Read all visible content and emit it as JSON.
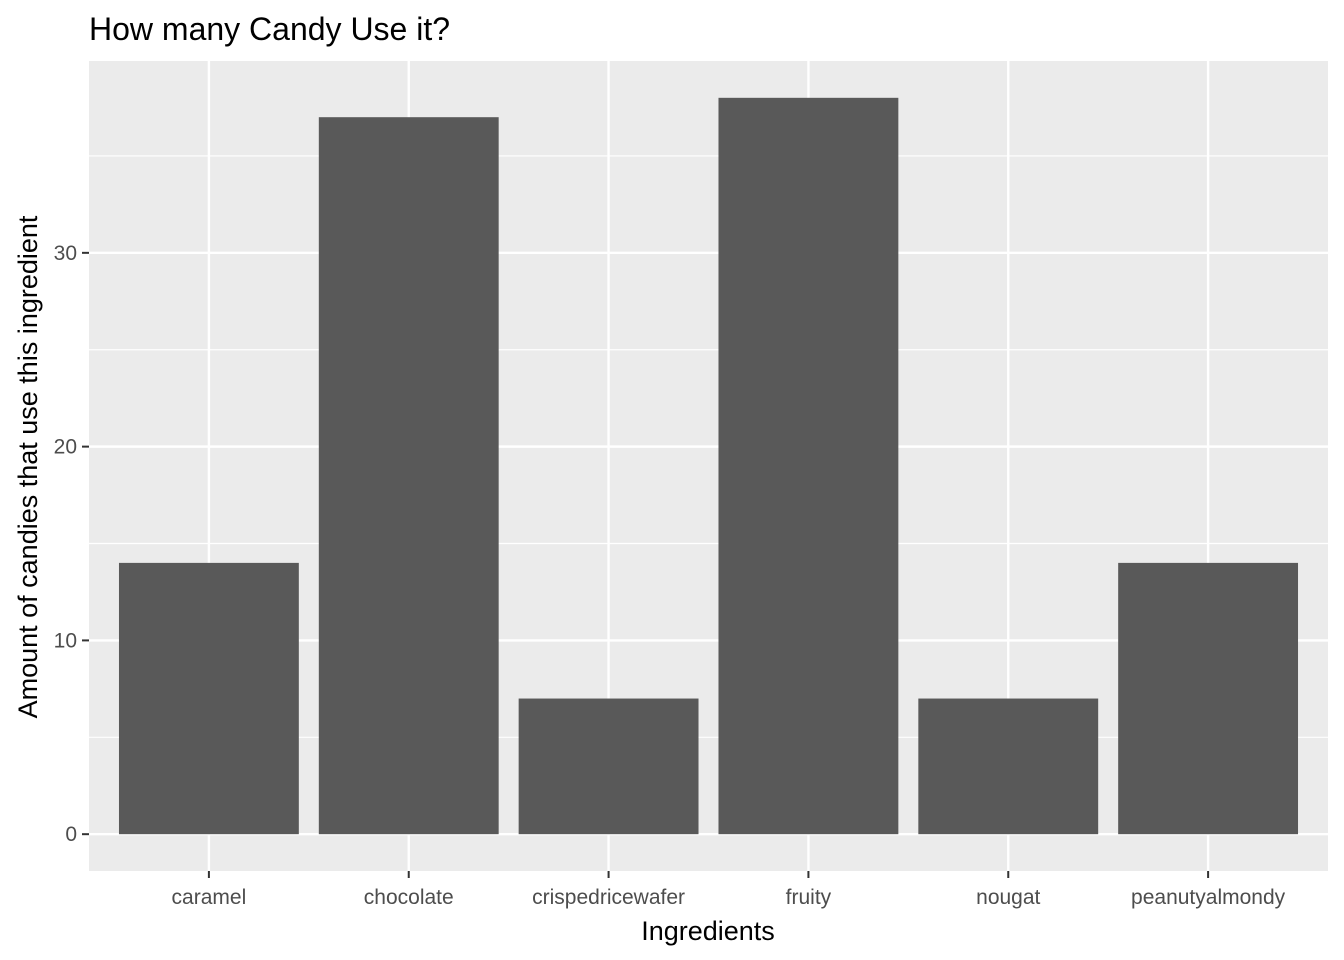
{
  "chart_data": {
    "type": "bar",
    "title": "How many Candy Use it?",
    "xlabel": "Ingredients",
    "ylabel": "Amount of candies that use this ingredient",
    "categories": [
      "caramel",
      "chocolate",
      "crispedricewafer",
      "fruity",
      "nougat",
      "peanutyalmondy"
    ],
    "values": [
      14,
      37,
      7,
      38,
      7,
      14
    ],
    "ylim": [
      -1.9,
      39.9
    ],
    "yticks": [
      0,
      10,
      20,
      30
    ],
    "ytick_labels": [
      "0",
      "10",
      "20",
      "30"
    ],
    "grid": true,
    "legend": "none",
    "colors": {
      "bar": "#595959",
      "panel_background": "#ebebeb",
      "grid_line": "#ffffff",
      "tick_label": "#4d4d4d",
      "tick_mark": "#333333"
    }
  }
}
